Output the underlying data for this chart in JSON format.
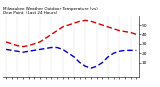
{
  "title": "Milwaukee Weather Outdoor Temperature (vs) Dew Point (Last 24 Hours)",
  "temp": [
    32,
    30,
    28,
    27,
    28,
    30,
    32,
    36,
    40,
    44,
    48,
    50,
    52,
    54,
    55,
    54,
    52,
    50,
    48,
    46,
    44,
    43,
    42,
    40
  ],
  "dew": [
    24,
    23,
    22,
    21,
    22,
    23,
    24,
    25,
    26,
    26,
    24,
    20,
    16,
    10,
    6,
    4,
    6,
    10,
    16,
    20,
    22,
    23,
    23,
    23
  ],
  "temp_color": "#dd0000",
  "dew_color": "#0000cc",
  "ylim": [
    -5,
    60
  ],
  "ytick_vals": [
    10,
    20,
    30,
    40,
    50
  ],
  "ytick_labels": [
    "10",
    "20",
    "30",
    "40",
    "50"
  ],
  "n_points": 24,
  "grid_color": "#bbbbbb",
  "bg_color": "#ffffff",
  "temp_lw": 1.0,
  "dew_lw": 1.0,
  "title_fontsize": 3.0,
  "tick_fontsize": 3.2
}
